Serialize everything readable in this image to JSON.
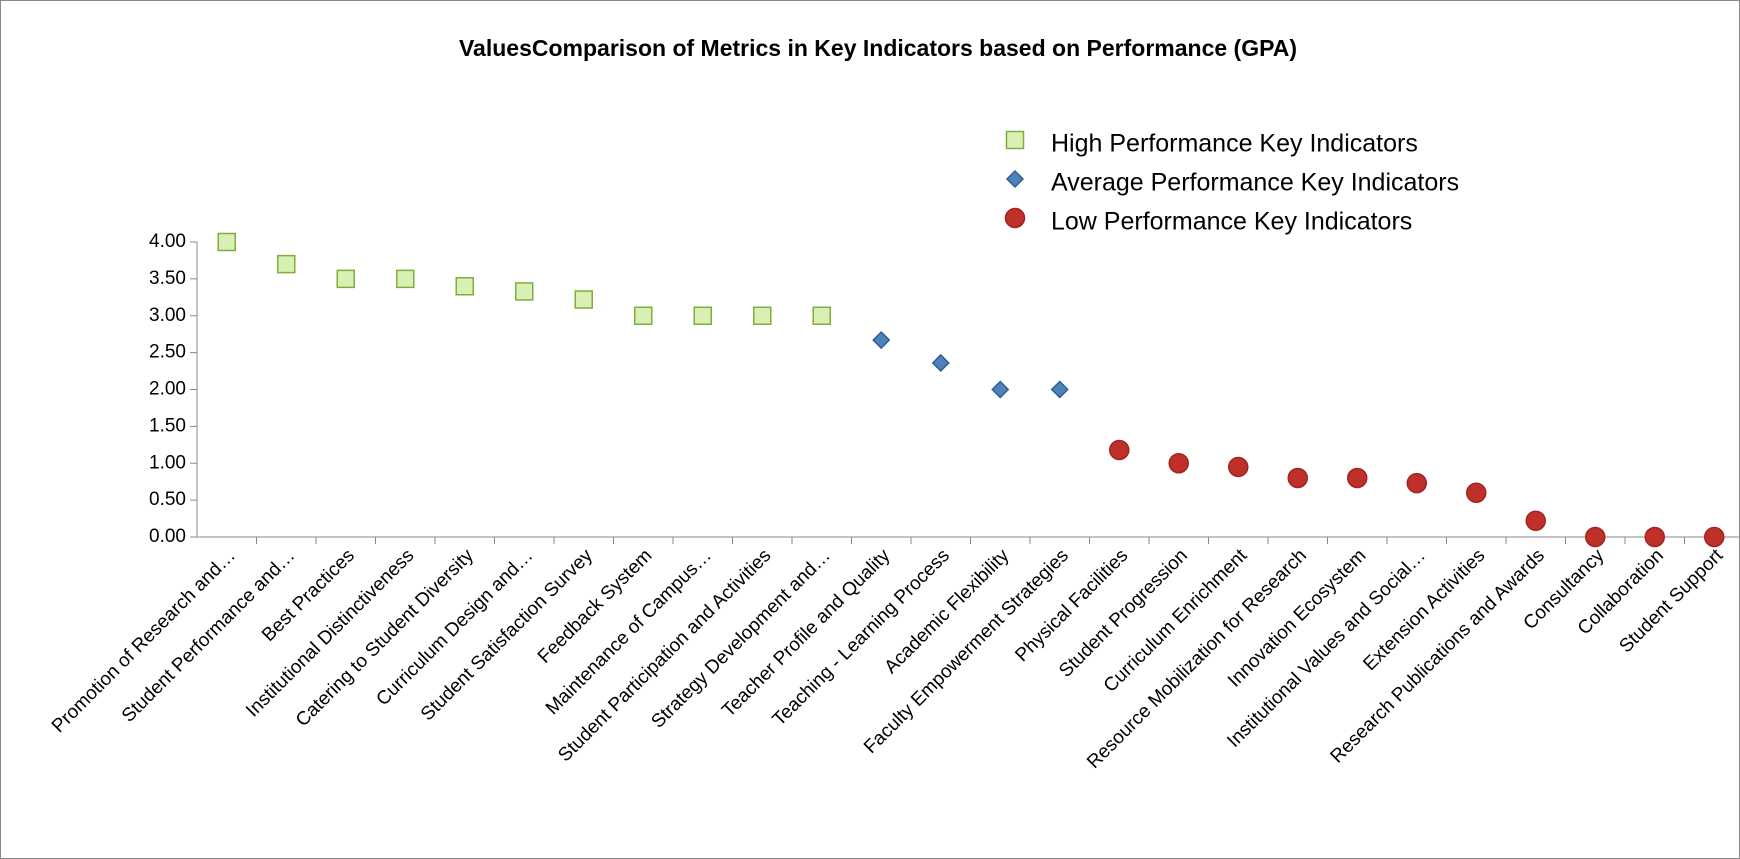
{
  "chart_data": {
    "type": "scatter",
    "title": "ValuesComparison of Metrics in Key Indicators based on Performance (GPA)",
    "categories": [
      "Promotion of Research and…",
      "Student Performance and…",
      "Best Practices",
      "Institutional Distinctiveness",
      "Catering to Student Diversity",
      "Curriculum Design and…",
      "Student Satisfaction Survey",
      "Feedback System",
      "Maintenance of Campus…",
      "Student Participation and Activities",
      "Strategy Development and…",
      "Teacher Profile and Quality",
      "Teaching - Learning Process",
      "Academic Flexibility",
      "Faculty Empowerment Strategies",
      "Physical Facilities",
      "Student Progression",
      "Curriculum Enrichment",
      "Resource Mobilization for Research",
      "Innovation Ecosystem",
      "Institutional Values and Social…",
      "Extension Activities",
      "Research Publications and Awards",
      "Consultancy",
      "Collaboration",
      "Student Support"
    ],
    "series": [
      {
        "name": "High Performance Key Indicators",
        "color": "#d8f0b4",
        "edge": "#7fae3e",
        "marker": "square",
        "values": [
          4.0,
          3.7,
          3.5,
          3.5,
          3.4,
          3.33,
          3.22,
          3.0,
          3.0,
          3.0,
          3.0,
          null,
          null,
          null,
          null,
          null,
          null,
          null,
          null,
          null,
          null,
          null,
          null,
          null,
          null,
          null
        ]
      },
      {
        "name": "Average Performance Key Indicators",
        "color": "#4f81bd",
        "edge": "#2f5f96",
        "marker": "diamond",
        "values": [
          null,
          null,
          null,
          null,
          null,
          null,
          null,
          null,
          null,
          null,
          null,
          2.67,
          2.36,
          2.0,
          2.0,
          null,
          null,
          null,
          null,
          null,
          null,
          null,
          null,
          null,
          null,
          null
        ]
      },
      {
        "name": "Low Performance Key Indicators",
        "color": "#c0302a",
        "edge": "#a02520",
        "marker": "circle",
        "values": [
          null,
          null,
          null,
          null,
          null,
          null,
          null,
          null,
          null,
          null,
          null,
          null,
          null,
          null,
          null,
          1.18,
          1.0,
          0.95,
          0.8,
          0.8,
          0.73,
          0.6,
          0.22,
          0.0,
          0.0,
          0.0
        ]
      }
    ],
    "ylim": [
      0,
      4
    ],
    "yticks": [
      {
        "value": 0,
        "label": "0.00"
      },
      {
        "value": 0.5,
        "label": "0.50"
      },
      {
        "value": 1,
        "label": "1.00"
      },
      {
        "value": 1.5,
        "label": "1.50"
      },
      {
        "value": 2,
        "label": "2.00"
      },
      {
        "value": 2.5,
        "label": "2.50"
      },
      {
        "value": 3,
        "label": "3.00"
      },
      {
        "value": 3.5,
        "label": "3.50"
      },
      {
        "value": 4,
        "label": "4.00"
      }
    ],
    "grid": false,
    "legend": "top-right"
  }
}
